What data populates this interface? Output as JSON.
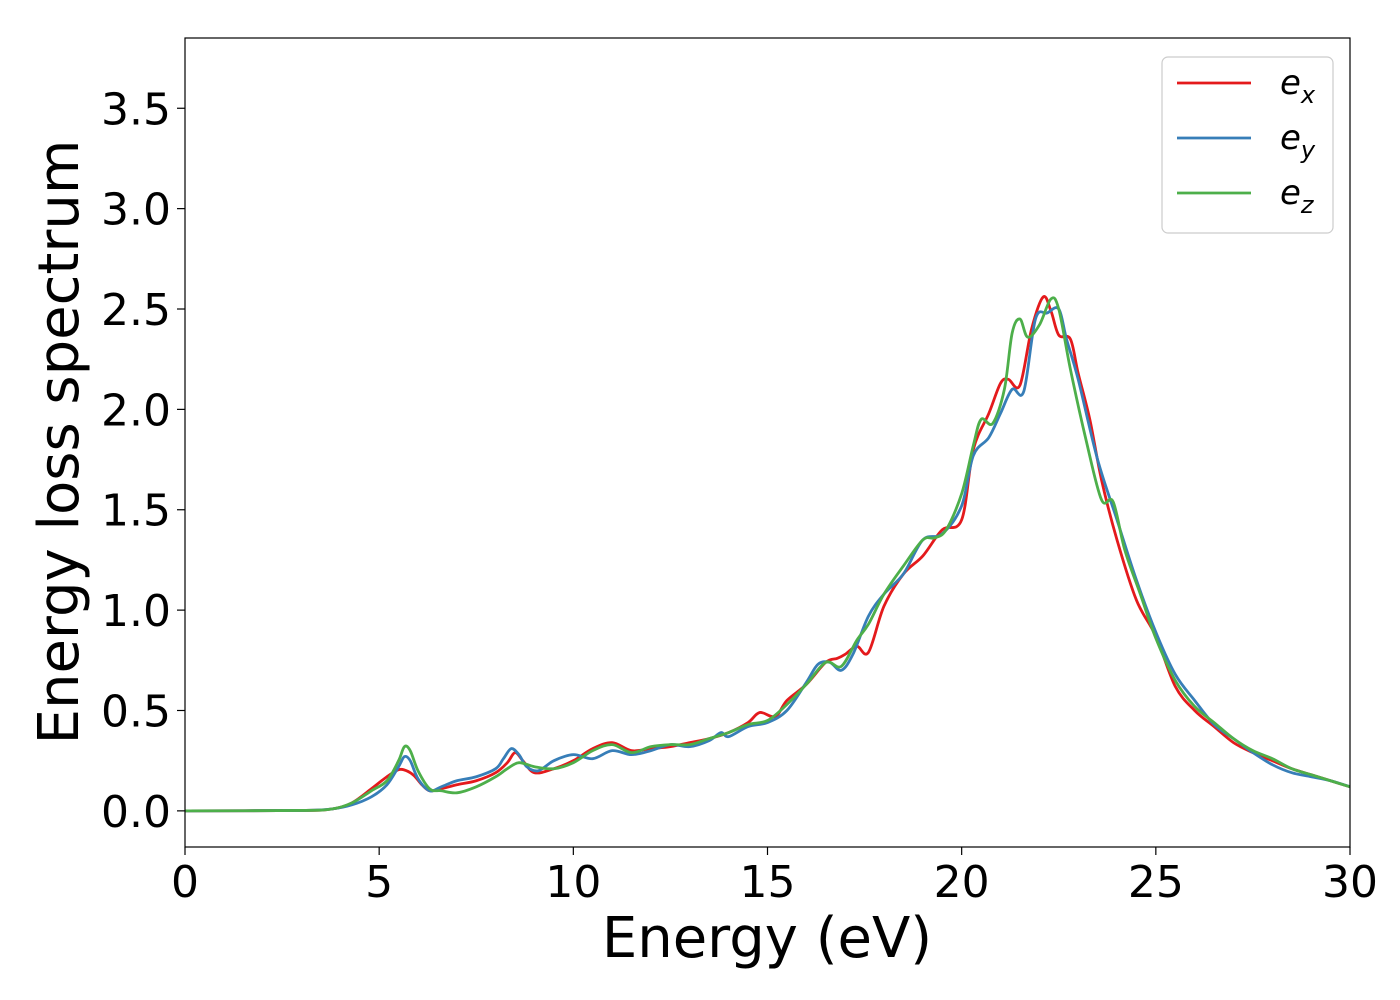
{
  "chart_data": {
    "type": "line",
    "title": "",
    "xlabel": "Energy (eV)",
    "ylabel": "Energy loss spectrum",
    "xlim": [
      0,
      30
    ],
    "ylim": [
      -0.18,
      3.85
    ],
    "xticks": [
      "0",
      "5",
      "10",
      "15",
      "20",
      "25",
      "30"
    ],
    "yticks": [
      "0.0",
      "0.5",
      "1.0",
      "1.5",
      "2.0",
      "2.5",
      "3.0",
      "3.5"
    ],
    "grid": false,
    "legend_position": "top-right",
    "series": [
      {
        "name": "e_x",
        "label_base": "e",
        "label_sub": "x",
        "color": "#e41a1c",
        "x": [
          0,
          3,
          3.8,
          4.3,
          4.8,
          5.2,
          5.5,
          5.7,
          5.9,
          6.1,
          6.3,
          6.6,
          7.0,
          7.5,
          8.0,
          8.3,
          8.5,
          8.7,
          9.0,
          9.5,
          10.0,
          10.5,
          11.0,
          11.5,
          12.0,
          12.5,
          13.0,
          13.5,
          14.0,
          14.5,
          14.8,
          15.2,
          15.5,
          16.0,
          16.5,
          16.8,
          17.0,
          17.3,
          17.6,
          18.0,
          18.5,
          19.0,
          19.5,
          20.0,
          20.3,
          20.7,
          21.0,
          21.2,
          21.5,
          21.8,
          22.1,
          22.3,
          22.5,
          22.8,
          23.0,
          23.3,
          23.6,
          24.0,
          24.5,
          25.0,
          25.5,
          26.0,
          26.5,
          27.0,
          27.5,
          28.0,
          28.5,
          29.0,
          29.5,
          30.0
        ],
        "values": [
          0.0,
          0.002,
          0.01,
          0.04,
          0.11,
          0.17,
          0.205,
          0.2,
          0.175,
          0.13,
          0.1,
          0.11,
          0.13,
          0.15,
          0.19,
          0.24,
          0.29,
          0.25,
          0.19,
          0.21,
          0.25,
          0.31,
          0.34,
          0.3,
          0.31,
          0.32,
          0.34,
          0.36,
          0.39,
          0.44,
          0.49,
          0.47,
          0.55,
          0.63,
          0.74,
          0.76,
          0.78,
          0.82,
          0.79,
          1.02,
          1.18,
          1.27,
          1.4,
          1.45,
          1.8,
          1.98,
          2.13,
          2.15,
          2.12,
          2.4,
          2.56,
          2.49,
          2.37,
          2.35,
          2.18,
          1.95,
          1.65,
          1.35,
          1.05,
          0.87,
          0.62,
          0.5,
          0.42,
          0.34,
          0.29,
          0.25,
          0.21,
          0.18,
          0.15,
          0.12
        ]
      },
      {
        "name": "e_y",
        "label_base": "e",
        "label_sub": "y",
        "color": "#377eb8",
        "x": [
          0,
          3,
          3.8,
          4.3,
          4.8,
          5.2,
          5.5,
          5.65,
          5.8,
          6.0,
          6.3,
          6.6,
          7.0,
          7.5,
          8.0,
          8.2,
          8.4,
          8.6,
          8.8,
          9.1,
          9.5,
          10.0,
          10.5,
          11.0,
          11.5,
          12.0,
          12.5,
          13.0,
          13.5,
          13.8,
          14.0,
          14.5,
          15.0,
          15.5,
          16.0,
          16.3,
          16.6,
          16.9,
          17.2,
          17.6,
          18.0,
          18.5,
          19.0,
          19.5,
          20.0,
          20.3,
          20.7,
          21.0,
          21.3,
          21.6,
          21.9,
          22.2,
          22.5,
          22.7,
          23.0,
          23.5,
          24.0,
          24.5,
          25.0,
          25.5,
          26.0,
          26.5,
          27.0,
          27.5,
          28.0,
          28.5,
          29.0,
          29.5,
          30.0
        ],
        "values": [
          0.0,
          0.002,
          0.01,
          0.03,
          0.07,
          0.13,
          0.22,
          0.27,
          0.25,
          0.16,
          0.1,
          0.12,
          0.15,
          0.17,
          0.21,
          0.26,
          0.31,
          0.28,
          0.22,
          0.2,
          0.25,
          0.28,
          0.26,
          0.3,
          0.28,
          0.3,
          0.33,
          0.32,
          0.35,
          0.39,
          0.37,
          0.42,
          0.44,
          0.5,
          0.64,
          0.73,
          0.74,
          0.7,
          0.78,
          0.97,
          1.08,
          1.18,
          1.35,
          1.38,
          1.52,
          1.77,
          1.86,
          1.98,
          2.1,
          2.09,
          2.45,
          2.48,
          2.5,
          2.35,
          2.15,
          1.75,
          1.45,
          1.15,
          0.89,
          0.68,
          0.55,
          0.43,
          0.36,
          0.29,
          0.23,
          0.19,
          0.17,
          0.15,
          0.12
        ]
      },
      {
        "name": "e_z",
        "label_base": "e",
        "label_sub": "z",
        "color": "#4daf4a",
        "x": [
          0,
          3,
          3.8,
          4.3,
          4.8,
          5.2,
          5.5,
          5.65,
          5.8,
          6.0,
          6.3,
          6.6,
          7.0,
          7.5,
          8.0,
          8.3,
          8.6,
          9.0,
          9.5,
          10.0,
          10.5,
          11.0,
          11.5,
          12.0,
          12.5,
          13.0,
          13.5,
          14.0,
          14.5,
          15.0,
          15.5,
          16.0,
          16.5,
          16.9,
          17.3,
          17.6,
          18.0,
          18.5,
          19.0,
          19.3,
          19.6,
          20.0,
          20.3,
          20.5,
          20.8,
          21.1,
          21.3,
          21.5,
          21.7,
          22.0,
          22.3,
          22.5,
          22.8,
          23.2,
          23.6,
          23.9,
          24.2,
          24.6,
          25.0,
          25.5,
          26.0,
          26.5,
          27.0,
          27.5,
          28.0,
          28.5,
          29.0,
          29.5,
          30.0
        ],
        "values": [
          0.0,
          0.002,
          0.01,
          0.04,
          0.1,
          0.15,
          0.25,
          0.32,
          0.3,
          0.2,
          0.11,
          0.1,
          0.09,
          0.12,
          0.17,
          0.21,
          0.24,
          0.22,
          0.21,
          0.24,
          0.3,
          0.33,
          0.29,
          0.32,
          0.33,
          0.33,
          0.36,
          0.39,
          0.43,
          0.45,
          0.53,
          0.63,
          0.74,
          0.72,
          0.85,
          0.93,
          1.08,
          1.22,
          1.35,
          1.36,
          1.4,
          1.58,
          1.82,
          1.95,
          1.93,
          2.1,
          2.38,
          2.45,
          2.36,
          2.42,
          2.55,
          2.5,
          2.2,
          1.85,
          1.55,
          1.54,
          1.3,
          1.08,
          0.86,
          0.65,
          0.52,
          0.44,
          0.36,
          0.3,
          0.26,
          0.21,
          0.18,
          0.15,
          0.12
        ]
      }
    ]
  }
}
